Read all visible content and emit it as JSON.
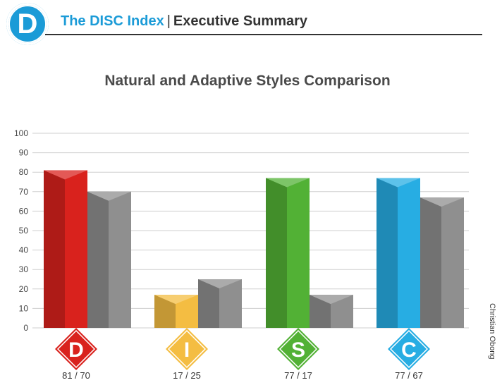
{
  "header": {
    "logo_letter": "D",
    "brand": "The DISC Index",
    "separator": "|",
    "section": "Executive Summary"
  },
  "credit": "Christian Obong",
  "colors": {
    "brand": "#1b9bd7",
    "D": "#d9221d",
    "I": "#f4bd42",
    "S": "#52b135",
    "C": "#27ade3",
    "adaptive": "#8f8f8f"
  },
  "chart_data": {
    "type": "bar",
    "title": "Natural and Adaptive Styles Comparison",
    "categories": [
      "D",
      "I",
      "S",
      "C"
    ],
    "series": [
      {
        "values": [
          81,
          17,
          77,
          77
        ]
      },
      {
        "values": [
          70,
          25,
          17,
          67
        ]
      }
    ],
    "value_labels": [
      "81 / 70",
      "17 / 25",
      "77 / 17",
      "77 / 67"
    ],
    "yticks": [
      0,
      10,
      20,
      30,
      40,
      50,
      60,
      70,
      80,
      90,
      100
    ],
    "ylim": [
      0,
      100
    ],
    "grid": true
  }
}
